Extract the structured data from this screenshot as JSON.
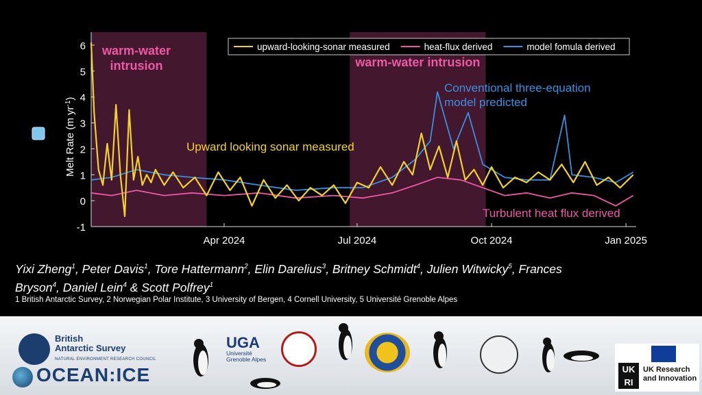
{
  "chart_data": {
    "type": "line",
    "ylabel": "Melt Rate (m yr",
    "ylabel_sup": "-1",
    "ylabel_close": ")",
    "ylim": [
      -1,
      6.5
    ],
    "yticks": [
      -1,
      0,
      1,
      2,
      3,
      4,
      5,
      6
    ],
    "xlim": [
      "2024-01-01",
      "2025-01-08"
    ],
    "xticks": [
      {
        "date": "2024-04-01",
        "label": "Apr 2024"
      },
      {
        "date": "2024-07-01",
        "label": "Jul 2024"
      },
      {
        "date": "2024-10-01",
        "label": "Oct 2024"
      },
      {
        "date": "2025-01-01",
        "label": "Jan 2025"
      }
    ],
    "legend_position": "top-right",
    "series": [
      {
        "name": "upward-looking-sonar measured",
        "color": "#f2d22e",
        "x": [
          "2024-01-01",
          "2024-01-03",
          "2024-01-06",
          "2024-01-09",
          "2024-01-12",
          "2024-01-15",
          "2024-01-18",
          "2024-01-21",
          "2024-01-24",
          "2024-01-27",
          "2024-01-30",
          "2024-02-02",
          "2024-02-05",
          "2024-02-08",
          "2024-02-11",
          "2024-02-14",
          "2024-02-20",
          "2024-02-26",
          "2024-03-04",
          "2024-03-12",
          "2024-03-20",
          "2024-03-28",
          "2024-04-05",
          "2024-04-12",
          "2024-04-20",
          "2024-04-28",
          "2024-05-06",
          "2024-05-14",
          "2024-05-22",
          "2024-05-30",
          "2024-06-07",
          "2024-06-15",
          "2024-06-23",
          "2024-07-01",
          "2024-07-09",
          "2024-07-17",
          "2024-07-25",
          "2024-08-02",
          "2024-08-08",
          "2024-08-14",
          "2024-08-20",
          "2024-08-26",
          "2024-09-01",
          "2024-09-07",
          "2024-09-13",
          "2024-09-19",
          "2024-09-25",
          "2024-10-01",
          "2024-10-09",
          "2024-10-17",
          "2024-10-25",
          "2024-11-02",
          "2024-11-10",
          "2024-11-18",
          "2024-11-26",
          "2024-12-04",
          "2024-12-12",
          "2024-12-20",
          "2024-12-28",
          "2025-01-06"
        ],
        "y": [
          6.1,
          3.4,
          1.2,
          0.6,
          2.2,
          0.8,
          3.7,
          1.0,
          -0.6,
          3.5,
          0.8,
          1.7,
          0.6,
          1.0,
          0.7,
          1.2,
          0.6,
          1.1,
          0.5,
          0.9,
          0.2,
          1.1,
          0.4,
          0.9,
          -0.2,
          0.8,
          0.1,
          0.6,
          0.0,
          0.5,
          0.2,
          0.6,
          -0.1,
          0.7,
          0.5,
          1.3,
          0.6,
          1.5,
          1.0,
          2.6,
          1.2,
          2.1,
          0.9,
          2.3,
          0.8,
          1.2,
          0.6,
          1.3,
          0.5,
          0.9,
          0.7,
          1.1,
          0.8,
          1.4,
          0.7,
          1.5,
          0.6,
          0.9,
          0.5,
          1.0
        ]
      },
      {
        "name": "heat-flux derived",
        "color": "#ec5aa6",
        "x": [
          "2024-01-01",
          "2024-01-15",
          "2024-02-01",
          "2024-02-20",
          "2024-03-10",
          "2024-04-01",
          "2024-04-25",
          "2024-05-20",
          "2024-06-15",
          "2024-07-05",
          "2024-07-25",
          "2024-08-10",
          "2024-08-25",
          "2024-09-10",
          "2024-09-25",
          "2024-10-10",
          "2024-10-25",
          "2024-11-10",
          "2024-11-25",
          "2024-12-10",
          "2024-12-25",
          "2025-01-06"
        ],
        "y": [
          0.3,
          0.2,
          0.4,
          0.2,
          0.3,
          0.2,
          0.3,
          0.1,
          0.2,
          0.1,
          0.3,
          0.6,
          0.9,
          0.8,
          0.5,
          0.2,
          0.3,
          0.1,
          0.3,
          0.2,
          -0.2,
          0.2
        ]
      },
      {
        "name": "model fomula derived",
        "color": "#3a90e0",
        "x": [
          "2024-01-01",
          "2024-01-15",
          "2024-02-01",
          "2024-02-20",
          "2024-03-10",
          "2024-04-01",
          "2024-04-25",
          "2024-05-20",
          "2024-06-15",
          "2024-07-05",
          "2024-07-25",
          "2024-08-10",
          "2024-08-20",
          "2024-08-25",
          "2024-09-05",
          "2024-09-15",
          "2024-09-25",
          "2024-10-10",
          "2024-10-25",
          "2024-11-10",
          "2024-11-20",
          "2024-11-25",
          "2024-12-10",
          "2024-12-25",
          "2025-01-06"
        ],
        "y": [
          0.8,
          0.9,
          1.2,
          1.0,
          0.9,
          0.8,
          0.6,
          0.4,
          0.5,
          0.5,
          0.9,
          1.6,
          2.3,
          4.2,
          2.0,
          3.4,
          1.4,
          0.9,
          0.8,
          0.8,
          3.3,
          1.0,
          0.9,
          0.7,
          1.1
        ]
      }
    ],
    "shaded_periods": [
      {
        "start": "2024-01-01",
        "end": "2024-03-20",
        "label": "warm-water\nintrusion"
      },
      {
        "start": "2024-06-26",
        "end": "2024-09-27",
        "label": "warm-water intrusion"
      }
    ],
    "annotations": [
      {
        "text": "Upward looking sonar measured",
        "color": "#f2d22e"
      },
      {
        "text": "Conventional three-equation\nmodel predicted",
        "color": "#3a90e0"
      },
      {
        "text": "Turbulent heat flux derived",
        "color": "#ec5aa6"
      }
    ],
    "shade_label_color": "#ec5aa6"
  },
  "credits": {
    "authors_line1": [
      {
        "name": "Yixi Zheng",
        "sup": "1"
      },
      {
        "name": "Peter Davis",
        "sup": "1"
      },
      {
        "name": "Tore Hattermann",
        "sup": "2"
      },
      {
        "name": "Elin Darelius",
        "sup": "3"
      },
      {
        "name": "Britney Schmidt",
        "sup": "4"
      },
      {
        "name": "Julien Witwicky",
        "sup": "5"
      },
      {
        "name": "Frances",
        "sup": ""
      }
    ],
    "authors_line2_text": "Bryson",
    "authors_line2_parts": [
      {
        "name": "Bryson",
        "sup": "4"
      },
      {
        "name": "Daniel Lein",
        "sup": "4"
      },
      {
        "name": "Scott Polfrey",
        "sup": "1"
      }
    ],
    "affiliations": "1 British Antarctic Survey, 2 Norwegian Polar Institute, 3 University of Bergen, 4 Cornell University, 5 Université Grenoble Alpes"
  },
  "logos": {
    "bas_name": "British\nAntarctic Survey",
    "bas_sub": "NATURAL ENVIRONMENT RESEARCH COUNCIL",
    "ocean_ice": "OCEAN:ICE",
    "uga": "UGA",
    "uga_sub": "Université\nGrenoble Alpes",
    "ukri": "UK Research\nand Innovation",
    "ukri_mark": "UK\nRI"
  }
}
